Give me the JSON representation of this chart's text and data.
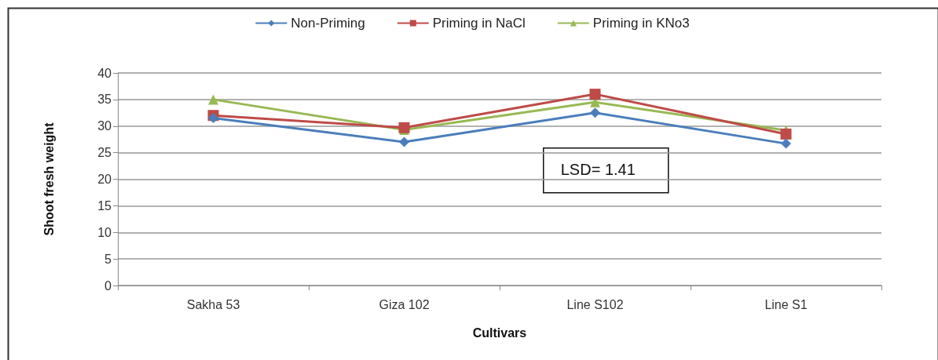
{
  "chart_data": {
    "type": "line",
    "xlabel": "Cultivars",
    "ylabel": "Shoot fresh weight",
    "categories": [
      "Sakha 53",
      "Giza 102",
      "Line S102",
      "Line S1"
    ],
    "series": [
      {
        "name": "Non-Priming",
        "color": "#4a7ebb",
        "marker": "diamond",
        "values": [
          31.5,
          27,
          32.5,
          26.7
        ]
      },
      {
        "name": "Priming in NaCl",
        "color": "#be4b48",
        "marker": "square",
        "values": [
          32,
          29.7,
          36,
          28.5
        ]
      },
      {
        "name": "Priming in KNo3",
        "color": "#98b954",
        "marker": "triangle",
        "values": [
          35,
          29.3,
          34.5,
          29.2
        ]
      }
    ],
    "ylim": [
      0,
      40
    ],
    "yticks": [
      0,
      5,
      10,
      15,
      20,
      25,
      30,
      35,
      40
    ],
    "grid": "y",
    "legend": "top",
    "line_style": "solid",
    "annotations": [
      "LSD= 1.41"
    ]
  }
}
